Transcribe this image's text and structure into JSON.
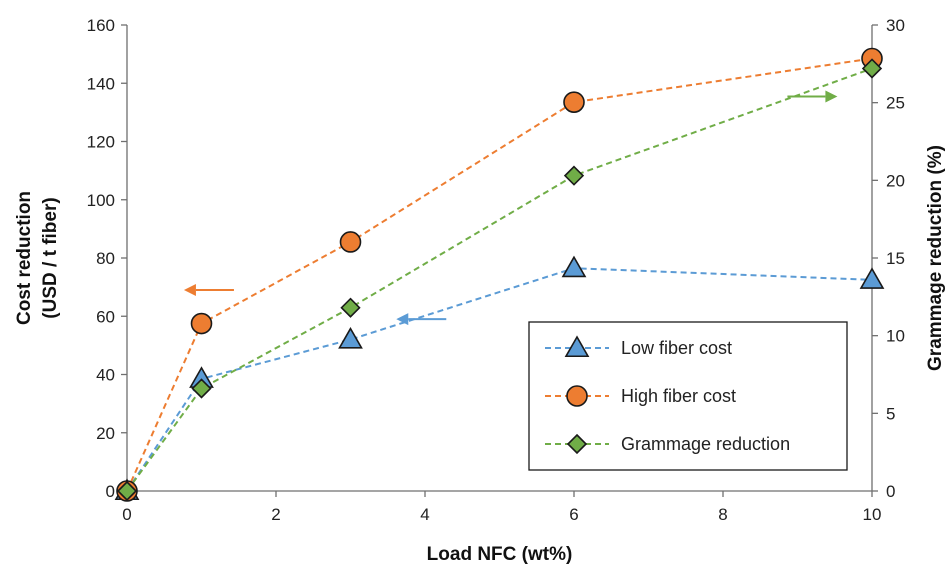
{
  "chart_data": {
    "type": "scatter",
    "x": [
      0,
      1,
      3,
      6,
      10
    ],
    "xlabel": "Load NFC (wt%)",
    "xlim": [
      0,
      10
    ],
    "xticks": [
      "0",
      "2",
      "4",
      "6",
      "8",
      "10"
    ],
    "ylabel_lines": [
      "Cost reduction",
      "(USD / t fiber)"
    ],
    "ylim": [
      0,
      160
    ],
    "yticks": [
      "0",
      "20",
      "40",
      "60",
      "80",
      "100",
      "120",
      "140",
      "160"
    ],
    "y2label": "Grammage reduction (%)",
    "y2lim": [
      0,
      30
    ],
    "y2ticks": [
      "0",
      "5",
      "10",
      "15",
      "20",
      "25",
      "30"
    ],
    "grid": false,
    "legend_position": "bottom-right",
    "series": [
      {
        "name": "Low fiber cost",
        "axis": "left",
        "marker": "triangle",
        "color": "#5b9bd5",
        "values": [
          0,
          38.5,
          52,
          76.5,
          72.5
        ]
      },
      {
        "name": "High fiber cost",
        "axis": "left",
        "marker": "circle",
        "color": "#ed7d31",
        "values": [
          0,
          57.5,
          85.5,
          133.5,
          148.5
        ]
      },
      {
        "name": "Grammage reduction",
        "axis": "right",
        "marker": "diamond",
        "color": "#70ad47",
        "values": [
          0,
          6.6,
          11.8,
          20.3,
          27.2
        ]
      }
    ],
    "annotations": [
      {
        "type": "arrow",
        "direction": "left",
        "color": "#ed7d31",
        "x": 1.1,
        "y": 69,
        "axis": "left"
      },
      {
        "type": "arrow",
        "direction": "left",
        "color": "#5b9bd5",
        "x": 3.95,
        "y": 59,
        "axis": "left"
      },
      {
        "type": "arrow",
        "direction": "right",
        "color": "#70ad47",
        "x": 9.2,
        "y": 25.4,
        "axis": "right"
      }
    ]
  }
}
